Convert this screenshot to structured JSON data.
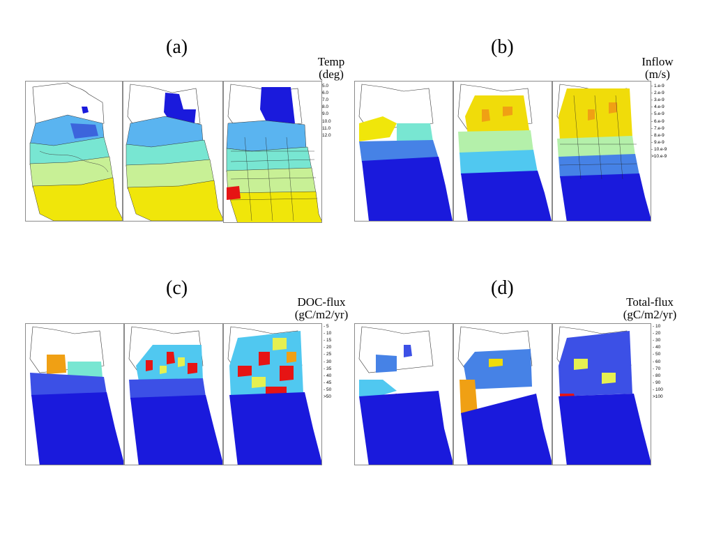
{
  "panels": [
    {
      "id": "a",
      "label": "(a)",
      "legend_title_line1": "Temp",
      "legend_title_line2": "(deg)",
      "legend": [
        {
          "label": "- 5.0",
          "color": "#1a1adc"
        },
        {
          "label": "- 6.0",
          "color": "#3c64dc"
        },
        {
          "label": "- 7.0",
          "color": "#5ab4f0"
        },
        {
          "label": "- 8.0",
          "color": "#78e6d2"
        },
        {
          "label": "- 9.0",
          "color": "#c8f096"
        },
        {
          "label": "- 10.0",
          "color": "#f0e60a"
        },
        {
          "label": "- 11.0",
          "color": "#f08c14"
        },
        {
          "label": "- 12.0",
          "color": "#e61414"
        }
      ]
    },
    {
      "id": "b",
      "label": "(b)",
      "legend_title_line1": "Inflow",
      "legend_title_line2": "(m/s)",
      "legend": [
        {
          "label": "- 1.e-9",
          "color": "#1a1adc"
        },
        {
          "label": "- 2.e-9",
          "color": "#3c50e6"
        },
        {
          "label": "- 3.e-9",
          "color": "#4682e6"
        },
        {
          "label": "- 4.e-9",
          "color": "#50c8f0"
        },
        {
          "label": "- 5.e-9",
          "color": "#78e6d2"
        },
        {
          "label": "- 6.e-9",
          "color": "#b4f0aa"
        },
        {
          "label": "- 7.e-9",
          "color": "#e6f050"
        },
        {
          "label": "- 8.e-9",
          "color": "#f0dc0a"
        },
        {
          "label": "- 9.e-9",
          "color": "#f0a014"
        },
        {
          "label": "- 10.e-9",
          "color": "#f06414"
        },
        {
          "label": ">10.e-9",
          "color": "#e61414"
        }
      ]
    },
    {
      "id": "c",
      "label": "(c)",
      "legend_title_line1": "DOC-flux",
      "legend_title_line2": "(gC/m2/yr)",
      "legend": [
        {
          "label": "- 5",
          "color": "#1a1adc"
        },
        {
          "label": "- 10",
          "color": "#3c50e6"
        },
        {
          "label": "- 15",
          "color": "#4682e6"
        },
        {
          "label": "- 20",
          "color": "#50c8f0"
        },
        {
          "label": "- 25",
          "color": "#78e6d2"
        },
        {
          "label": "- 30",
          "color": "#b4f0aa"
        },
        {
          "label": "- 35",
          "color": "#e6f050"
        },
        {
          "label": "- 40",
          "color": "#f0dc0a"
        },
        {
          "label": "- 45",
          "color": "#f0a014"
        },
        {
          "label": "- 50",
          "color": "#f06414"
        },
        {
          "label": ">50",
          "color": "#e61414"
        }
      ]
    },
    {
      "id": "d",
      "label": "(d)",
      "legend_title_line1": "Total-flux",
      "legend_title_line2": "(gC/m2/yr)",
      "legend": [
        {
          "label": "- 10",
          "color": "#1a1adc"
        },
        {
          "label": "- 20",
          "color": "#3c50e6"
        },
        {
          "label": "- 30",
          "color": "#4682e6"
        },
        {
          "label": "- 40",
          "color": "#50c8f0"
        },
        {
          "label": "- 50",
          "color": "#78e6d2"
        },
        {
          "label": "- 60",
          "color": "#b4f0aa"
        },
        {
          "label": "- 70",
          "color": "#e6f050"
        },
        {
          "label": "- 80",
          "color": "#f0dc0a"
        },
        {
          "label": "- 90",
          "color": "#f0a014"
        },
        {
          "label": "- 100",
          "color": "#f06414"
        },
        {
          "label": ">100",
          "color": "#e61414"
        }
      ]
    }
  ]
}
